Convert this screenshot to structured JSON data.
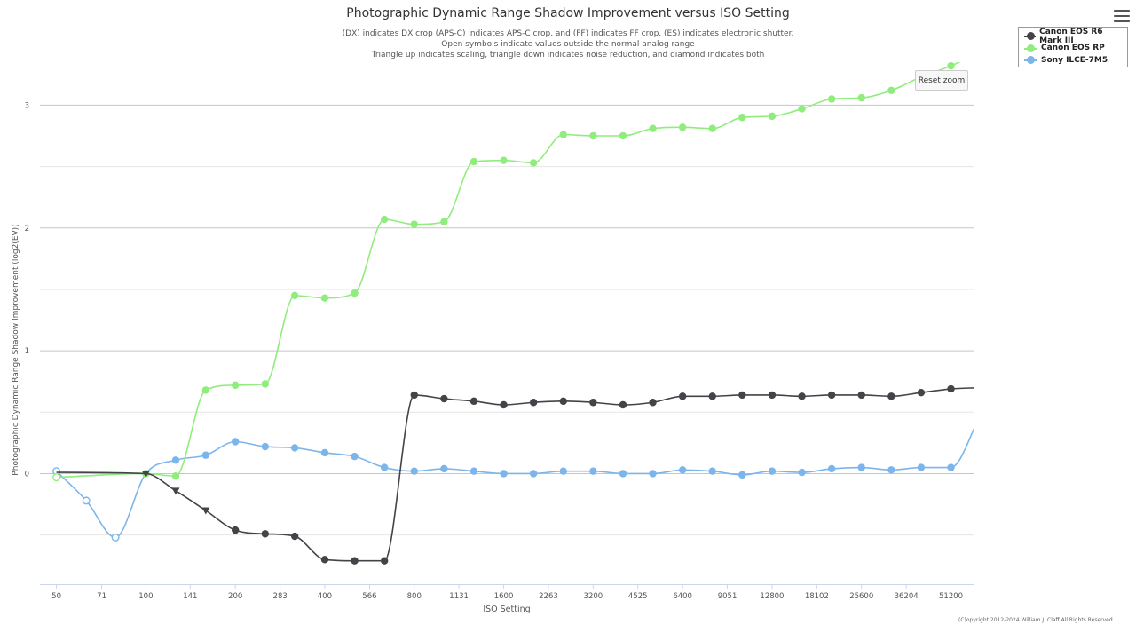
{
  "chart_data": {
    "type": "line",
    "title": "Photographic Dynamic Range Shadow Improvement versus ISO Setting",
    "subtitle": [
      "(DX) indicates DX crop (APS-C) indicates APS-C crop, and (FF) indicates FF crop. (ES) indicates electronic shutter.",
      "Open symbols indicate values outside the normal analog range",
      "Triangle up indicates scaling, triangle down indicates noise reduction, and diamond indicates both"
    ],
    "xlabel": "ISO Setting",
    "ylabel": "Photographic Dynamic Range Shadow Improvement (log2(EV))",
    "x_scale": "log2",
    "xlim": [
      44,
      61000
    ],
    "ylim": [
      -0.9,
      3.35
    ],
    "x_ticks": [
      50,
      71,
      100,
      141,
      200,
      283,
      400,
      566,
      800,
      1131,
      1600,
      2263,
      3200,
      4525,
      6400,
      9051,
      12800,
      18102,
      25600,
      36204,
      51200
    ],
    "y_ticks": [
      0,
      1,
      2,
      3
    ],
    "grid": true,
    "legend_position": "top-right",
    "series": [
      {
        "name": "Canon EOS R6 Mark III",
        "color": "#434348",
        "points": [
          {
            "x": 50,
            "y": 0.01,
            "marker": "none"
          },
          {
            "x": 100,
            "y": 0.0,
            "marker": "triangle-down"
          },
          {
            "x": 126,
            "y": -0.14,
            "marker": "triangle-down"
          },
          {
            "x": 159,
            "y": -0.3,
            "marker": "triangle-down"
          },
          {
            "x": 200,
            "y": -0.46,
            "marker": "circle"
          },
          {
            "x": 252,
            "y": -0.49,
            "marker": "circle"
          },
          {
            "x": 317,
            "y": -0.51,
            "marker": "circle"
          },
          {
            "x": 400,
            "y": -0.7,
            "marker": "circle"
          },
          {
            "x": 504,
            "y": -0.71,
            "marker": "circle"
          },
          {
            "x": 635,
            "y": -0.71,
            "marker": "circle"
          },
          {
            "x": 800,
            "y": 0.64,
            "marker": "circle"
          },
          {
            "x": 1008,
            "y": 0.61,
            "marker": "circle"
          },
          {
            "x": 1270,
            "y": 0.59,
            "marker": "circle"
          },
          {
            "x": 1600,
            "y": 0.56,
            "marker": "circle"
          },
          {
            "x": 2016,
            "y": 0.58,
            "marker": "circle"
          },
          {
            "x": 2540,
            "y": 0.59,
            "marker": "circle"
          },
          {
            "x": 3200,
            "y": 0.58,
            "marker": "circle"
          },
          {
            "x": 4032,
            "y": 0.56,
            "marker": "circle"
          },
          {
            "x": 5080,
            "y": 0.58,
            "marker": "circle"
          },
          {
            "x": 6400,
            "y": 0.63,
            "marker": "circle"
          },
          {
            "x": 8063,
            "y": 0.63,
            "marker": "circle"
          },
          {
            "x": 10159,
            "y": 0.64,
            "marker": "circle"
          },
          {
            "x": 12800,
            "y": 0.64,
            "marker": "circle"
          },
          {
            "x": 16127,
            "y": 0.63,
            "marker": "circle"
          },
          {
            "x": 20319,
            "y": 0.64,
            "marker": "circle"
          },
          {
            "x": 25600,
            "y": 0.64,
            "marker": "circle"
          },
          {
            "x": 32254,
            "y": 0.63,
            "marker": "circle"
          },
          {
            "x": 40637,
            "y": 0.66,
            "marker": "circle"
          },
          {
            "x": 51200,
            "y": 0.69,
            "marker": "circle"
          },
          {
            "x": 64000,
            "y": 0.7,
            "marker": "none"
          }
        ]
      },
      {
        "name": "Canon EOS RP",
        "color": "#90ed7d",
        "points": [
          {
            "x": 50,
            "y": -0.03,
            "marker": "open-circle"
          },
          {
            "x": 100,
            "y": 0.0,
            "marker": "circle"
          },
          {
            "x": 126,
            "y": -0.02,
            "marker": "circle"
          },
          {
            "x": 159,
            "y": 0.68,
            "marker": "circle"
          },
          {
            "x": 200,
            "y": 0.72,
            "marker": "circle"
          },
          {
            "x": 252,
            "y": 0.73,
            "marker": "circle"
          },
          {
            "x": 317,
            "y": 1.45,
            "marker": "circle"
          },
          {
            "x": 400,
            "y": 1.43,
            "marker": "circle"
          },
          {
            "x": 504,
            "y": 1.47,
            "marker": "circle"
          },
          {
            "x": 635,
            "y": 2.07,
            "marker": "circle"
          },
          {
            "x": 800,
            "y": 2.03,
            "marker": "circle"
          },
          {
            "x": 1008,
            "y": 2.05,
            "marker": "circle"
          },
          {
            "x": 1270,
            "y": 2.54,
            "marker": "circle"
          },
          {
            "x": 1600,
            "y": 2.55,
            "marker": "circle"
          },
          {
            "x": 2016,
            "y": 2.53,
            "marker": "circle"
          },
          {
            "x": 2540,
            "y": 2.76,
            "marker": "circle"
          },
          {
            "x": 3200,
            "y": 2.75,
            "marker": "circle"
          },
          {
            "x": 4032,
            "y": 2.75,
            "marker": "circle"
          },
          {
            "x": 5080,
            "y": 2.81,
            "marker": "circle"
          },
          {
            "x": 6400,
            "y": 2.82,
            "marker": "circle"
          },
          {
            "x": 8063,
            "y": 2.81,
            "marker": "circle"
          },
          {
            "x": 10159,
            "y": 2.9,
            "marker": "circle"
          },
          {
            "x": 12800,
            "y": 2.91,
            "marker": "circle"
          },
          {
            "x": 16127,
            "y": 2.97,
            "marker": "circle"
          },
          {
            "x": 20319,
            "y": 3.05,
            "marker": "circle"
          },
          {
            "x": 25600,
            "y": 3.06,
            "marker": "circle"
          },
          {
            "x": 32254,
            "y": 3.12,
            "marker": "circle"
          },
          {
            "x": 40637,
            "y": 3.23,
            "marker": "circle"
          },
          {
            "x": 51200,
            "y": 3.32,
            "marker": "circle"
          },
          {
            "x": 64000,
            "y": 3.43,
            "marker": "none"
          }
        ]
      },
      {
        "name": "Sony ILCE-7M5",
        "color": "#7cb5ec",
        "points": [
          {
            "x": 50,
            "y": 0.02,
            "marker": "open-circle"
          },
          {
            "x": 63,
            "y": -0.22,
            "marker": "open-circle"
          },
          {
            "x": 79,
            "y": -0.52,
            "marker": "open-circle"
          },
          {
            "x": 100,
            "y": 0.0,
            "marker": "circle"
          },
          {
            "x": 126,
            "y": 0.11,
            "marker": "circle"
          },
          {
            "x": 159,
            "y": 0.15,
            "marker": "circle"
          },
          {
            "x": 200,
            "y": 0.26,
            "marker": "circle"
          },
          {
            "x": 252,
            "y": 0.22,
            "marker": "circle"
          },
          {
            "x": 317,
            "y": 0.21,
            "marker": "circle"
          },
          {
            "x": 400,
            "y": 0.17,
            "marker": "circle"
          },
          {
            "x": 504,
            "y": 0.14,
            "marker": "circle"
          },
          {
            "x": 635,
            "y": 0.05,
            "marker": "circle"
          },
          {
            "x": 800,
            "y": 0.02,
            "marker": "circle"
          },
          {
            "x": 1008,
            "y": 0.04,
            "marker": "circle"
          },
          {
            "x": 1270,
            "y": 0.02,
            "marker": "circle"
          },
          {
            "x": 1600,
            "y": 0.0,
            "marker": "circle"
          },
          {
            "x": 2016,
            "y": 0.0,
            "marker": "circle"
          },
          {
            "x": 2540,
            "y": 0.02,
            "marker": "circle"
          },
          {
            "x": 3200,
            "y": 0.02,
            "marker": "circle"
          },
          {
            "x": 4032,
            "y": 0.0,
            "marker": "circle"
          },
          {
            "x": 5080,
            "y": 0.0,
            "marker": "circle"
          },
          {
            "x": 6400,
            "y": 0.03,
            "marker": "circle"
          },
          {
            "x": 8063,
            "y": 0.02,
            "marker": "circle"
          },
          {
            "x": 10159,
            "y": -0.01,
            "marker": "circle"
          },
          {
            "x": 12800,
            "y": 0.02,
            "marker": "circle"
          },
          {
            "x": 16127,
            "y": 0.01,
            "marker": "circle"
          },
          {
            "x": 20319,
            "y": 0.04,
            "marker": "circle"
          },
          {
            "x": 25600,
            "y": 0.05,
            "marker": "circle"
          },
          {
            "x": 32254,
            "y": 0.03,
            "marker": "circle"
          },
          {
            "x": 40637,
            "y": 0.05,
            "marker": "circle"
          },
          {
            "x": 51200,
            "y": 0.05,
            "marker": "circle"
          },
          {
            "x": 64000,
            "y": 0.46,
            "marker": "none"
          }
        ]
      }
    ]
  },
  "ui": {
    "reset_zoom_label": "Reset zoom",
    "menu_icon": "hamburger-menu-icon",
    "copyright": "(C)opyright 2012-2024 William J. Claff All Rights Reserved."
  }
}
